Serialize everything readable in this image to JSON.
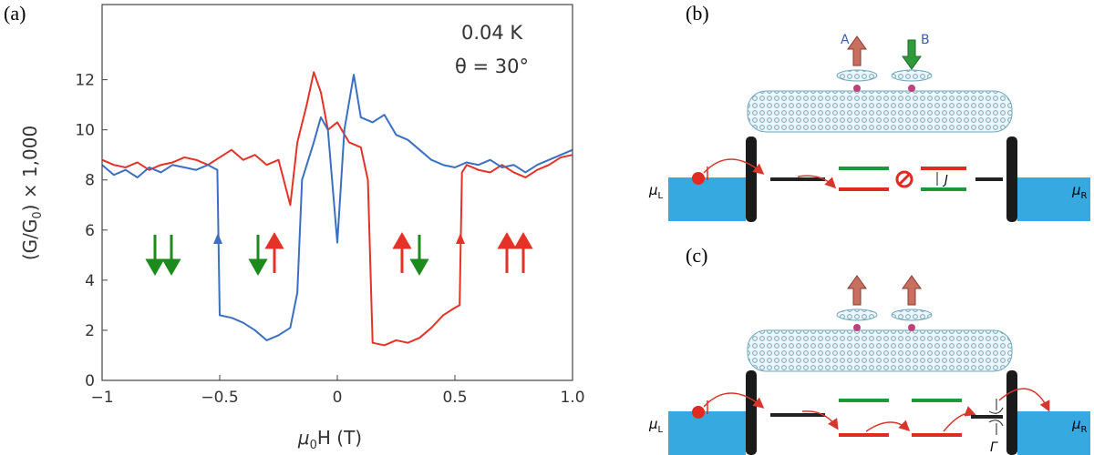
{
  "chart_data": {
    "type": "line",
    "x_label": [
      "μ",
      "0",
      "H (T)"
    ],
    "y_label": [
      "(G/G",
      "0",
      ") × 1,000"
    ],
    "annotations": [
      "0.04 K",
      "θ = 30°"
    ],
    "xlim": [
      -1,
      1
    ],
    "ylim": [
      0,
      15
    ],
    "xticks": [
      {
        "value": -1,
        "label": "−1"
      },
      {
        "value": -0.5,
        "label": "−0.5"
      },
      0,
      0.5,
      {
        "value": 1,
        "label": "1.0"
      }
    ],
    "yticks": [
      0,
      2,
      4,
      6,
      8,
      10,
      12
    ],
    "series": [
      {
        "color": "#e53228",
        "x": [
          -1,
          -0.95,
          -0.9,
          -0.85,
          -0.8,
          -0.75,
          -0.7,
          -0.65,
          -0.6,
          -0.55,
          -0.5,
          -0.45,
          -0.4,
          -0.35,
          -0.3,
          -0.25,
          -0.2,
          -0.17,
          -0.13,
          -0.1,
          -0.07,
          -0.04,
          0,
          0.05,
          0.1,
          0.13,
          0.15,
          0.2,
          0.25,
          0.3,
          0.35,
          0.4,
          0.45,
          0.5,
          0.52,
          0.53,
          0.55,
          0.6,
          0.65,
          0.7,
          0.75,
          0.8,
          0.85,
          0.9,
          0.95,
          1
        ],
        "values": [
          8.8,
          8.6,
          8.5,
          8.7,
          8.4,
          8.6,
          8.7,
          8.9,
          8.8,
          8.6,
          8.9,
          9.2,
          8.8,
          9.0,
          8.6,
          8.8,
          7.0,
          9.5,
          11.0,
          12.3,
          11.5,
          10.0,
          10.3,
          9.5,
          9.3,
          8.0,
          1.5,
          1.4,
          1.6,
          1.5,
          1.7,
          2.1,
          2.6,
          2.9,
          3.0,
          8.3,
          8.6,
          8.4,
          8.3,
          8.6,
          8.3,
          8.1,
          8.4,
          8.6,
          8.9,
          9.0
        ]
      },
      {
        "color": "#3b6fc2",
        "x": [
          -1,
          -0.95,
          -0.9,
          -0.85,
          -0.8,
          -0.75,
          -0.7,
          -0.65,
          -0.6,
          -0.55,
          -0.51,
          -0.5,
          -0.45,
          -0.4,
          -0.35,
          -0.3,
          -0.25,
          -0.2,
          -0.17,
          -0.15,
          -0.1,
          -0.07,
          -0.04,
          0,
          0.03,
          0.07,
          0.1,
          0.15,
          0.2,
          0.25,
          0.3,
          0.35,
          0.4,
          0.45,
          0.5,
          0.55,
          0.6,
          0.65,
          0.7,
          0.75,
          0.8,
          0.85,
          0.9,
          0.95,
          1
        ],
        "values": [
          8.6,
          8.2,
          8.4,
          8.1,
          8.5,
          8.3,
          8.6,
          8.5,
          8.4,
          8.6,
          8.4,
          2.6,
          2.5,
          2.3,
          2.0,
          1.6,
          1.8,
          2.1,
          3.5,
          8.0,
          9.5,
          10.5,
          10.0,
          5.5,
          10.0,
          12.2,
          10.5,
          10.3,
          10.6,
          9.8,
          9.6,
          9.2,
          8.8,
          8.6,
          8.5,
          8.7,
          8.6,
          8.8,
          8.5,
          8.6,
          8.3,
          8.6,
          8.8,
          9.0,
          9.2
        ]
      }
    ]
  },
  "panels": {
    "a": "(a)",
    "b": "(b)",
    "c": "(c)"
  },
  "diagram_b": {
    "molecule_a": "A",
    "molecule_b": "B",
    "mu_left": [
      "μ",
      "L"
    ],
    "mu_right": [
      "μ",
      "R"
    ],
    "coupling": "J"
  },
  "diagram_c": {
    "mu_left": [
      "μ",
      "L"
    ],
    "mu_right": [
      "μ",
      "R"
    ],
    "broadening": "Γ"
  }
}
